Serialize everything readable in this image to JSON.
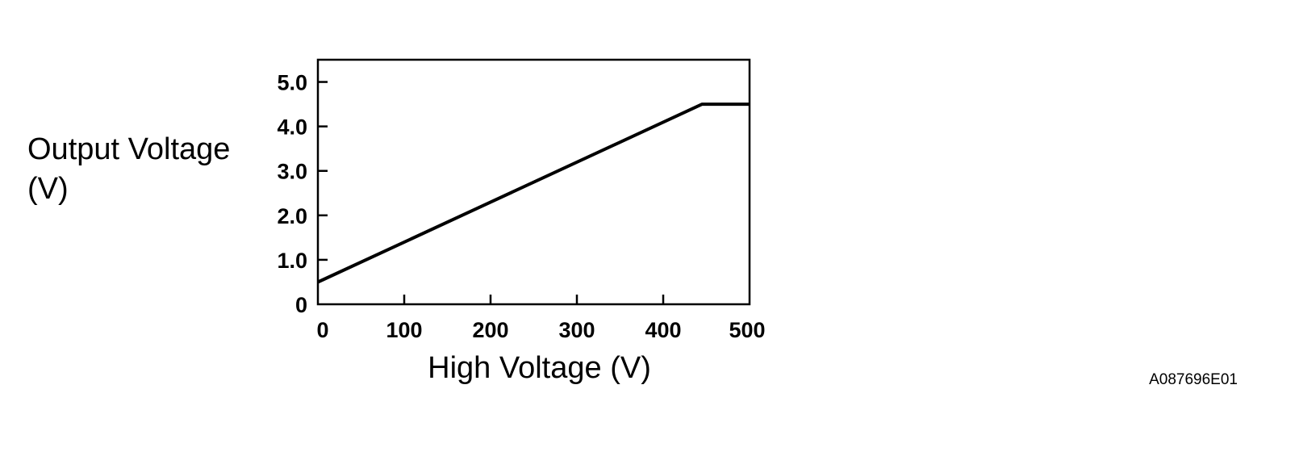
{
  "chart_data": {
    "type": "line",
    "xlabel": "High Voltage (V)",
    "ylabel_lines": [
      "Output Voltage",
      "(V)"
    ],
    "xlim": [
      0,
      500
    ],
    "ylim": [
      0,
      5.5
    ],
    "x_ticks": [
      {
        "value": 0,
        "label": "0"
      },
      {
        "value": 100,
        "label": "100"
      },
      {
        "value": 200,
        "label": "200"
      },
      {
        "value": 300,
        "label": "300"
      },
      {
        "value": 400,
        "label": "400"
      },
      {
        "value": 500,
        "label": "500"
      }
    ],
    "y_ticks": [
      {
        "value": 0,
        "label": "0"
      },
      {
        "value": 1,
        "label": "1.0"
      },
      {
        "value": 2,
        "label": "2.0"
      },
      {
        "value": 3,
        "label": "3.0"
      },
      {
        "value": 4,
        "label": "4.0"
      },
      {
        "value": 5,
        "label": "5.0"
      }
    ],
    "grid": false,
    "series": [
      {
        "color": "#000000",
        "points": [
          {
            "x": 0,
            "y": 0.5
          },
          {
            "x": 445,
            "y": 4.5
          },
          {
            "x": 500,
            "y": 4.5
          }
        ]
      }
    ]
  },
  "figure_id": "A087696E01"
}
